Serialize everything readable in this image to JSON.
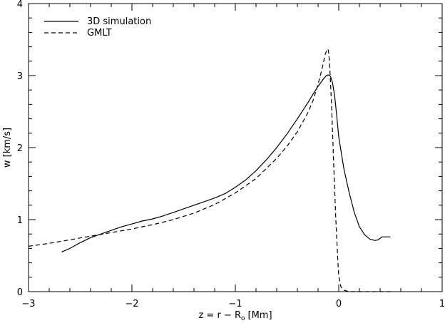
{
  "chart_data": {
    "type": "line",
    "title": "",
    "xlabel": "z = r − R",
    "xlabel_sub": "o",
    "xlabel_unit": "[Mm]",
    "ylabel": "w [km/s]",
    "xlim": [
      -3,
      1
    ],
    "ylim": [
      0,
      4
    ],
    "xticks": [
      -3,
      -2,
      -1,
      0,
      1
    ],
    "xtick_labels": [
      "−3",
      "−2",
      "−1",
      "0",
      "1"
    ],
    "yticks": [
      0,
      1,
      2,
      3,
      4
    ],
    "ytick_labels": [
      "0",
      "1",
      "2",
      "3",
      "4"
    ],
    "grid": false,
    "legend_position": "top-left",
    "series": [
      {
        "name": "3D simulation",
        "line_style": "solid",
        "x": [
          -2.68,
          -2.6,
          -2.5,
          -2.4,
          -2.3,
          -2.2,
          -2.1,
          -2.0,
          -1.9,
          -1.8,
          -1.7,
          -1.6,
          -1.5,
          -1.4,
          -1.3,
          -1.2,
          -1.1,
          -1.0,
          -0.9,
          -0.8,
          -0.7,
          -0.6,
          -0.5,
          -0.4,
          -0.3,
          -0.25,
          -0.2,
          -0.15,
          -0.12,
          -0.1,
          -0.08,
          -0.06,
          -0.04,
          -0.02,
          0.0,
          0.05,
          0.1,
          0.15,
          0.2,
          0.25,
          0.3,
          0.35,
          0.38,
          0.42,
          0.45,
          0.5
        ],
        "y": [
          0.55,
          0.6,
          0.68,
          0.75,
          0.8,
          0.85,
          0.9,
          0.94,
          0.98,
          1.01,
          1.05,
          1.1,
          1.15,
          1.2,
          1.25,
          1.3,
          1.36,
          1.45,
          1.55,
          1.68,
          1.83,
          2.0,
          2.19,
          2.4,
          2.62,
          2.74,
          2.85,
          2.95,
          3.0,
          3.01,
          2.99,
          2.9,
          2.72,
          2.45,
          2.15,
          1.7,
          1.38,
          1.1,
          0.9,
          0.79,
          0.73,
          0.71,
          0.72,
          0.76,
          0.76,
          0.76
        ]
      },
      {
        "name": "GMLT",
        "line_style": "dashed",
        "x": [
          -3.0,
          -2.8,
          -2.6,
          -2.4,
          -2.2,
          -2.0,
          -1.8,
          -1.6,
          -1.4,
          -1.2,
          -1.0,
          -0.8,
          -0.6,
          -0.5,
          -0.4,
          -0.3,
          -0.25,
          -0.2,
          -0.16,
          -0.13,
          -0.11,
          -0.1,
          -0.09,
          -0.07,
          -0.05,
          -0.03,
          -0.01,
          0.0,
          0.02,
          0.05,
          0.1,
          0.2,
          0.3,
          0.4,
          0.5
        ],
        "y": [
          0.63,
          0.67,
          0.72,
          0.77,
          0.82,
          0.87,
          0.93,
          1.0,
          1.09,
          1.21,
          1.37,
          1.57,
          1.85,
          2.02,
          2.22,
          2.48,
          2.65,
          2.88,
          3.1,
          3.3,
          3.37,
          3.35,
          3.2,
          2.6,
          1.8,
          1.05,
          0.45,
          0.22,
          0.07,
          0.02,
          0.0,
          0.0,
          0.0,
          0.0,
          0.0
        ]
      }
    ]
  }
}
